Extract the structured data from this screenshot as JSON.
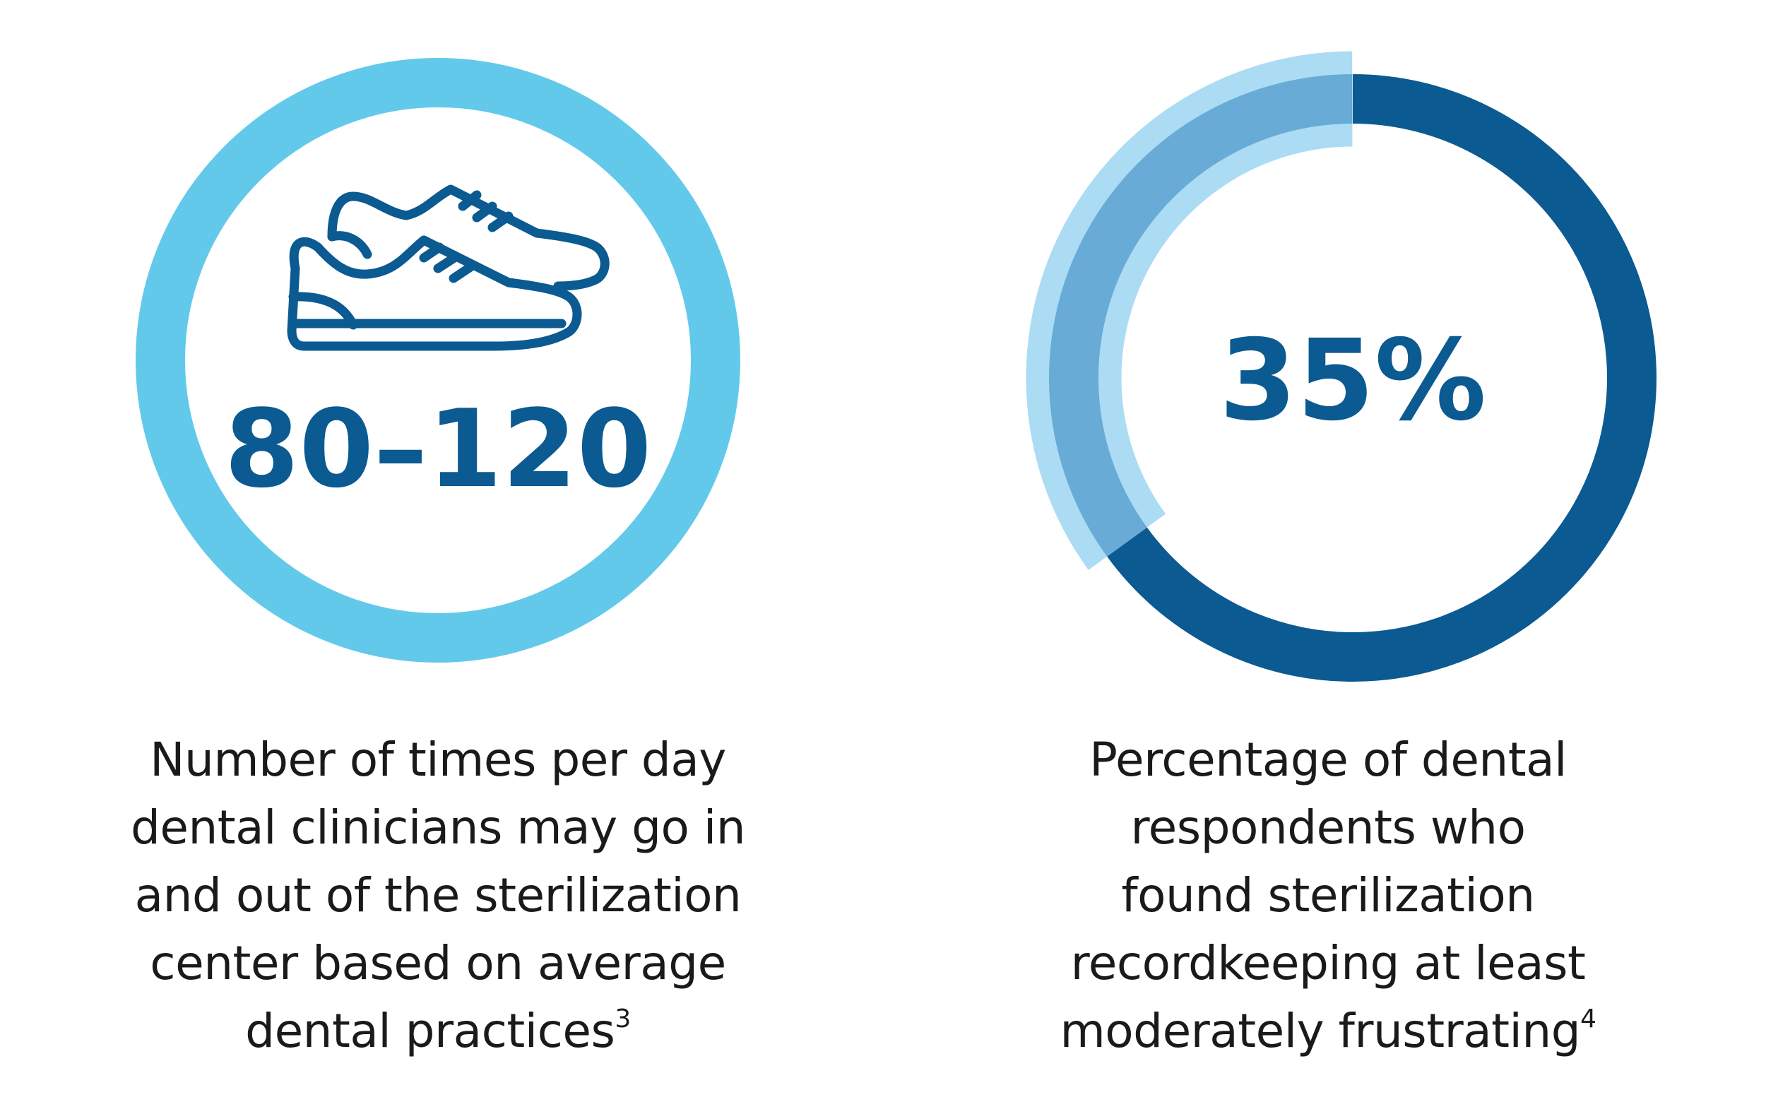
{
  "chart_data": [
    {
      "type": "ring-stat",
      "value_label": "80–120",
      "caption_lines": [
        "Number of times per day",
        "dental clinicians may go in",
        "and out of the sterilization",
        "center based on average",
        "dental practices"
      ],
      "footnote": "3",
      "icon": "sneakers-icon",
      "colors": {
        "ring": "#62c9eb",
        "text": "#0b5a91",
        "icon": "#0b5a91"
      }
    },
    {
      "type": "pie",
      "value_label": "35%",
      "value": 35,
      "caption_lines": [
        "Percentage of dental",
        "respondents who",
        "found sterilization",
        "recordkeeping at least",
        "moderately frustrating"
      ],
      "footnote": "4",
      "colors": {
        "remainder_ring": "#0b5a91",
        "highlight_outer": "#abdcf4",
        "highlight_overlap": "#68abd6",
        "text": "#0b5a91"
      }
    }
  ]
}
